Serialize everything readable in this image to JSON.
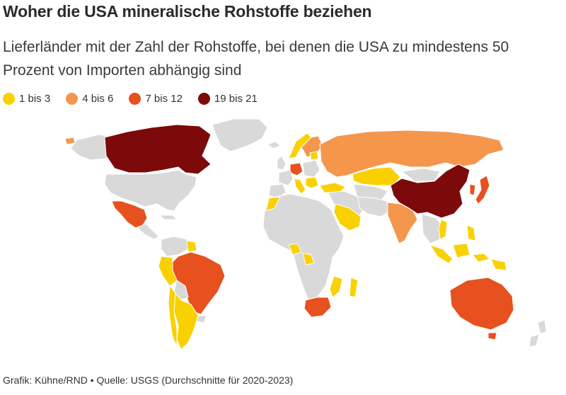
{
  "title": "Woher die USA mineralische Rohstoffe beziehen",
  "subtitle": "Lieferländer mit der Zahl der Rohstoffe, bei denen die USA zu mindestens 50 Prozent von Importen abhängig sind",
  "legend": [
    {
      "label": "1 bis 3",
      "color": "#f9d100"
    },
    {
      "label": "4 bis 6",
      "color": "#f5964d"
    },
    {
      "label": "7 bis 12",
      "color": "#e7501f"
    },
    {
      "label": "19 bis 21",
      "color": "#7c0a0a"
    }
  ],
  "colors": {
    "other_countries": "#d9d9d9",
    "borders": "#ffffff"
  },
  "footer": {
    "credit": "Grafik: Kühne/RND",
    "separator": "•",
    "source": "Quelle: USGS (Durchschnitte für 2020-2023)"
  }
}
